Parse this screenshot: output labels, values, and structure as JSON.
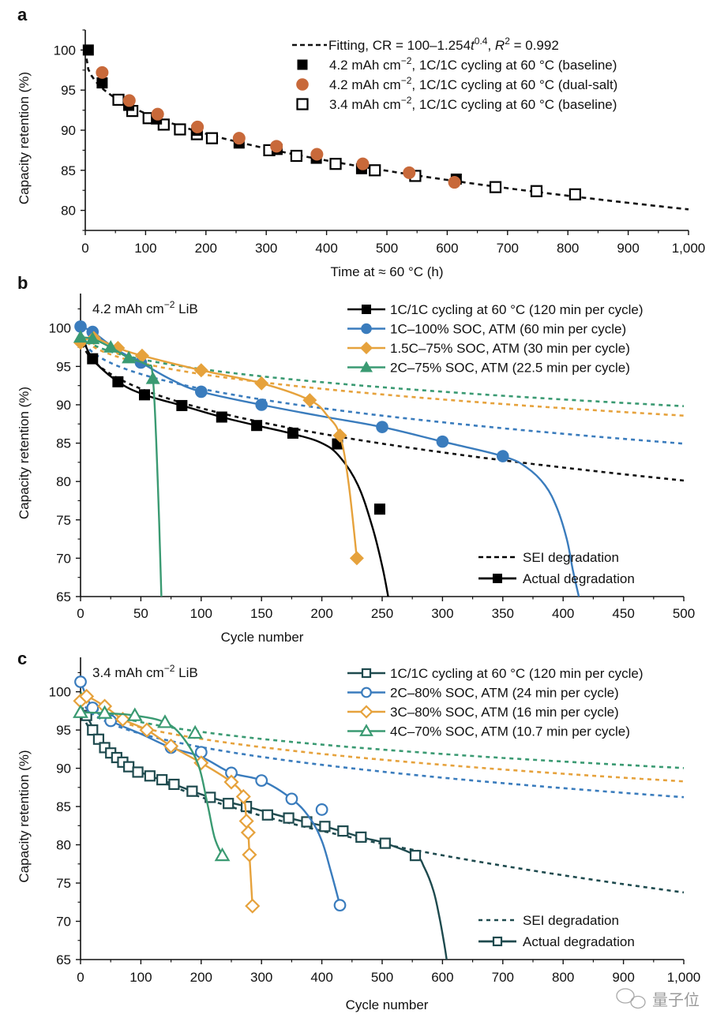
{
  "watermark": "量子位",
  "chart_data": [
    {
      "panel": "a",
      "type": "scatter",
      "title": "",
      "xlabel": "Time at ≈ 60 °C (h)",
      "ylabel": "Capacity retention (%)",
      "xlim": [
        0,
        1000
      ],
      "ylim": [
        77.5,
        102.5
      ],
      "xticks": [
        0,
        100,
        200,
        300,
        400,
        500,
        600,
        700,
        800,
        900,
        1000
      ],
      "xtick_labels": [
        "0",
        "100",
        "200",
        "300",
        "400",
        "500",
        "600",
        "700",
        "800",
        "900",
        "1,000"
      ],
      "yticks": [
        80,
        85,
        90,
        95,
        100
      ],
      "ytick_labels": [
        "80",
        "85",
        "90",
        "95",
        "100"
      ],
      "grid": false,
      "legend_position": "top-right",
      "fit": {
        "name": "Fitting, CR = 100–1.254t0.4, R2 = 0.992",
        "label_parts": [
          "Fitting, CR = 100–1.254",
          "t",
          "0.4",
          ", ",
          "R",
          "2",
          " = 0.992"
        ],
        "a": 100,
        "b": 1.254,
        "n": 0.4,
        "r2": 0.992,
        "style": "dashed",
        "color": "#111111"
      },
      "series": [
        {
          "name": "4.2 mAh cm−2, 1C/1C cycling at 60 °C (baseline)",
          "label_parts": [
            "4.2 mAh cm",
            "−2",
            ", 1C/1C cycling at 60 °C (baseline)"
          ],
          "marker": "square-filled",
          "color": "#000000",
          "x": [
            5,
            28,
            72,
            118,
            185,
            255,
            318,
            383,
            458,
            615
          ],
          "y": [
            100,
            95.9,
            93.1,
            91.4,
            90.0,
            88.4,
            87.6,
            86.5,
            85.2,
            83.9
          ]
        },
        {
          "name": "4.2 mAh cm−2, 1C/1C cycling at 60 °C (dual-salt)",
          "label_parts": [
            "4.2 mAh cm",
            "−2",
            ", 1C/1C cycling at 60 °C (dual-salt)"
          ],
          "marker": "circle-filled",
          "color": "#c8693a",
          "x": [
            28,
            73,
            120,
            186,
            255,
            317,
            384,
            460,
            537,
            612
          ],
          "y": [
            97.2,
            93.7,
            92.0,
            90.4,
            89.0,
            88.0,
            87.0,
            85.8,
            84.7,
            83.5
          ]
        },
        {
          "name": "3.4 mAh cm−2, 1C/1C cycling at 60 °C (baseline)",
          "label_parts": [
            "3.4 mAh cm",
            "−2",
            ", 1C/1C cycling at 60 °C (baseline)"
          ],
          "marker": "square-open",
          "color": "#000000",
          "x": [
            55,
            78,
            105,
            130,
            157,
            185,
            210,
            305,
            350,
            415,
            480,
            547,
            680,
            748,
            812
          ],
          "y": [
            93.8,
            92.4,
            91.5,
            90.7,
            90.1,
            89.5,
            89.0,
            87.5,
            86.8,
            85.8,
            85.0,
            84.3,
            82.9,
            82.4,
            82.0
          ]
        }
      ]
    },
    {
      "panel": "b",
      "type": "line",
      "annotation_parts": [
        "4.2 mAh cm",
        "−2",
        " LiB"
      ],
      "xlabel": "Cycle number",
      "ylabel": "Capacity retention (%)",
      "xlim": [
        0,
        500
      ],
      "ylim": [
        65,
        104.5
      ],
      "xticks": [
        0,
        50,
        100,
        150,
        200,
        250,
        300,
        350,
        400,
        450,
        500
      ],
      "xtick_labels": [
        "0",
        "50",
        "100",
        "150",
        "200",
        "250",
        "300",
        "350",
        "400",
        "450",
        "500"
      ],
      "yticks": [
        65,
        70,
        75,
        80,
        85,
        90,
        95,
        100
      ],
      "ytick_labels": [
        "65",
        "70",
        "75",
        "80",
        "85",
        "90",
        "95",
        "100"
      ],
      "grid": false,
      "legend_position": "top-right",
      "style_legend": [
        {
          "label": "SEI degradation",
          "style": "dashed"
        },
        {
          "label": "Actual degradation",
          "style": "solid-marker"
        }
      ],
      "series": [
        {
          "name": "1C/1C cycling at 60 °C (120 min per cycle)",
          "marker": "square-filled",
          "color": "#000000",
          "hours_per_cycle": 2,
          "x": [
            10,
            31,
            53,
            84,
            117,
            146,
            176,
            213,
            248
          ],
          "y": [
            96.0,
            93.0,
            91.3,
            89.9,
            88.4,
            87.3,
            86.3,
            84.9,
            76.4
          ],
          "curve_x": [
            0,
            10,
            31,
            53,
            84,
            117,
            146,
            176,
            200,
            215,
            230,
            242,
            250,
            255
          ],
          "curve_y": [
            99.5,
            96.0,
            93.0,
            91.3,
            89.9,
            88.4,
            87.3,
            86.2,
            85.0,
            83.2,
            79.5,
            74.0,
            69.0,
            65.0
          ]
        },
        {
          "name": "1C–100% SOC, ATM (60 min per cycle)",
          "marker": "circle-filled",
          "color": "#3a7cbd",
          "hours_per_cycle": 1,
          "x": [
            0,
            10,
            50,
            100,
            150,
            250,
            300,
            350
          ],
          "y": [
            100.2,
            99.5,
            95.5,
            91.7,
            90.0,
            87.1,
            85.2,
            83.3
          ],
          "curve_x": [
            0,
            10,
            30,
            50,
            75,
            100,
            150,
            200,
            250,
            300,
            350,
            370,
            385,
            395,
            403,
            408,
            413
          ],
          "curve_y": [
            100.2,
            99.5,
            97.2,
            95.5,
            93.3,
            91.7,
            90.0,
            88.5,
            87.1,
            85.2,
            83.3,
            81.8,
            79.5,
            76.5,
            72.5,
            68.5,
            65.0
          ]
        },
        {
          "name": "1.5C–75% SOC, ATM (30 min per cycle)",
          "marker": "diamond-filled",
          "color": "#e6a23c",
          "hours_per_cycle": 0.5,
          "x": [
            0,
            11,
            31,
            51,
            100,
            150,
            190,
            215,
            229
          ],
          "y": [
            98.1,
            98.7,
            97.4,
            96.4,
            94.5,
            92.8,
            90.6,
            86.0,
            70.0
          ],
          "curve_x": [
            0,
            11,
            31,
            51,
            100,
            150,
            190,
            205,
            215,
            222,
            229
          ],
          "curve_y": [
            98.1,
            98.7,
            97.4,
            96.4,
            94.5,
            92.8,
            90.6,
            88.5,
            86.0,
            80.0,
            70.0
          ]
        },
        {
          "name": "2C–75% SOC, ATM (22.5 min per cycle)",
          "marker": "triangle-filled",
          "color": "#3a9a72",
          "hours_per_cycle": 0.375,
          "x": [
            0,
            10,
            25,
            40,
            60
          ],
          "y": [
            98.8,
            98.6,
            97.5,
            96.1,
            93.4
          ],
          "curve_x": [
            0,
            10,
            25,
            40,
            55,
            60,
            64,
            67
          ],
          "curve_y": [
            98.8,
            98.6,
            97.5,
            96.1,
            95.2,
            93.4,
            80.0,
            65.0
          ]
        }
      ],
      "sei_series": [
        {
          "name": "1C/1C SEI",
          "color": "#111111",
          "a": 100,
          "b": 1.254,
          "n": 0.4,
          "hours_per_cycle": 2
        },
        {
          "name": "1C–100% SOC SEI",
          "color": "#3a7cbd",
          "a": 100,
          "b": 1.254,
          "n": 0.4,
          "hours_per_cycle": 1
        },
        {
          "name": "1.5C–75% SOC SEI",
          "color": "#e6a23c",
          "a": 100,
          "b": 1.254,
          "n": 0.4,
          "hours_per_cycle": 0.5
        },
        {
          "name": "2C–75% SOC SEI",
          "color": "#3a9a72",
          "a": 100,
          "b": 1.254,
          "n": 0.4,
          "hours_per_cycle": 0.375
        }
      ]
    },
    {
      "panel": "c",
      "type": "line",
      "annotation_parts": [
        "3.4 mAh cm",
        "−2",
        " LiB"
      ],
      "xlabel": "Cycle number",
      "ylabel": "Capacity retention (%)",
      "xlim": [
        0,
        1000
      ],
      "ylim": [
        65,
        104.5
      ],
      "xticks": [
        0,
        100,
        200,
        300,
        400,
        500,
        600,
        700,
        800,
        900,
        1000
      ],
      "xtick_labels": [
        "0",
        "100",
        "200",
        "300",
        "400",
        "500",
        "600",
        "700",
        "800",
        "900",
        "1,000"
      ],
      "yticks": [
        65,
        70,
        75,
        80,
        85,
        90,
        95,
        100
      ],
      "ytick_labels": [
        "65",
        "70",
        "75",
        "80",
        "85",
        "90",
        "95",
        "100"
      ],
      "grid": false,
      "legend_position": "top-right",
      "style_legend": [
        {
          "label": "SEI degradation",
          "style": "dashed"
        },
        {
          "label": "Actual degradation",
          "style": "solid-marker"
        }
      ],
      "series": [
        {
          "name": "1C/1C cycling at 60 °C (120 min per cycle)",
          "marker": "square-open",
          "color": "#1e4a4e",
          "hours_per_cycle": 2,
          "x": [
            10,
            20,
            30,
            40,
            50,
            60,
            70,
            80,
            95,
            115,
            135,
            155,
            185,
            215,
            245,
            275,
            310,
            345,
            375,
            405,
            435,
            465,
            505,
            555
          ],
          "y": [
            96.9,
            95.0,
            93.8,
            92.7,
            92.0,
            91.4,
            90.8,
            90.2,
            89.5,
            89.0,
            88.5,
            87.9,
            87.0,
            86.2,
            85.4,
            85.0,
            83.9,
            83.5,
            83.0,
            82.4,
            81.8,
            81.0,
            80.2,
            78.6
          ],
          "curve_x": [
            0,
            10,
            30,
            50,
            80,
            115,
            155,
            215,
            275,
            345,
            405,
            465,
            505,
            555,
            570,
            585,
            595,
            603,
            607
          ],
          "curve_y": [
            97.5,
            96.9,
            93.8,
            92.0,
            90.2,
            89.0,
            87.9,
            86.2,
            85.0,
            83.5,
            82.4,
            81.0,
            80.2,
            78.6,
            77.0,
            74.0,
            70.5,
            67.0,
            65.0
          ]
        },
        {
          "name": "2C–80% SOC, ATM (24 min per cycle)",
          "marker": "circle-open",
          "color": "#3a7cbd",
          "hours_per_cycle": 0.4,
          "x": [
            0,
            20,
            50,
            150,
            200,
            250,
            300,
            350,
            400,
            430
          ],
          "y": [
            101.3,
            97.9,
            96.2,
            92.7,
            92.1,
            89.4,
            88.4,
            86.0,
            84.6,
            72.1
          ],
          "curve_x": [
            0,
            20,
            50,
            100,
            150,
            200,
            250,
            300,
            350,
            380,
            400,
            415,
            430
          ],
          "curve_y": [
            101.3,
            97.9,
            96.2,
            94.5,
            92.7,
            91.5,
            89.4,
            88.4,
            86.0,
            83.5,
            80.5,
            76.5,
            72.1
          ]
        },
        {
          "name": "3C–80% SOC, ATM (16 min per cycle)",
          "marker": "diamond-open",
          "color": "#e6a23c",
          "hours_per_cycle": 0.2667,
          "x": [
            0,
            10,
            40,
            70,
            110,
            150,
            200,
            250,
            270,
            275,
            278,
            280,
            285
          ],
          "y": [
            98.8,
            99.4,
            98.1,
            96.4,
            95.0,
            92.9,
            90.7,
            88.2,
            86.3,
            83.1,
            81.6,
            78.7,
            72.0
          ],
          "curve_x": [
            0,
            10,
            40,
            70,
            110,
            150,
            200,
            250,
            270,
            275,
            278,
            280,
            285
          ],
          "curve_y": [
            98.8,
            99.4,
            98.1,
            96.4,
            95.0,
            92.9,
            90.7,
            88.2,
            86.3,
            83.1,
            81.6,
            78.7,
            72.0
          ]
        },
        {
          "name": "4C–70% SOC, ATM (10.7 min per cycle)",
          "marker": "triangle-open",
          "color": "#3a9a72",
          "hours_per_cycle": 0.1783,
          "x": [
            0,
            40,
            90,
            140,
            190,
            235
          ],
          "y": [
            97.3,
            97.2,
            96.9,
            96.0,
            94.6,
            78.6
          ],
          "curve_x": [
            0,
            40,
            90,
            140,
            170,
            195,
            210,
            222,
            235
          ],
          "curve_y": [
            97.3,
            97.2,
            96.9,
            96.0,
            94.0,
            90.5,
            85.5,
            81.0,
            78.6
          ]
        }
      ],
      "sei_series": [
        {
          "name": "1C/1C SEI",
          "color": "#1e4a4e",
          "a": 100,
          "b": 1.254,
          "n": 0.4,
          "hours_per_cycle": 2
        },
        {
          "name": "2C–80% SOC SEI",
          "color": "#3a7cbd",
          "a": 100,
          "b": 1.254,
          "n": 0.4,
          "hours_per_cycle": 0.4
        },
        {
          "name": "3C–80% SOC SEI",
          "color": "#e6a23c",
          "a": 100,
          "b": 1.254,
          "n": 0.4,
          "hours_per_cycle": 0.2667
        },
        {
          "name": "4C–70% SOC SEI",
          "color": "#3a9a72",
          "a": 100,
          "b": 1.254,
          "n": 0.4,
          "hours_per_cycle": 0.1783
        }
      ]
    }
  ],
  "panels": {
    "a": {
      "letter": "a"
    },
    "b": {
      "letter": "b"
    },
    "c": {
      "letter": "c"
    }
  }
}
